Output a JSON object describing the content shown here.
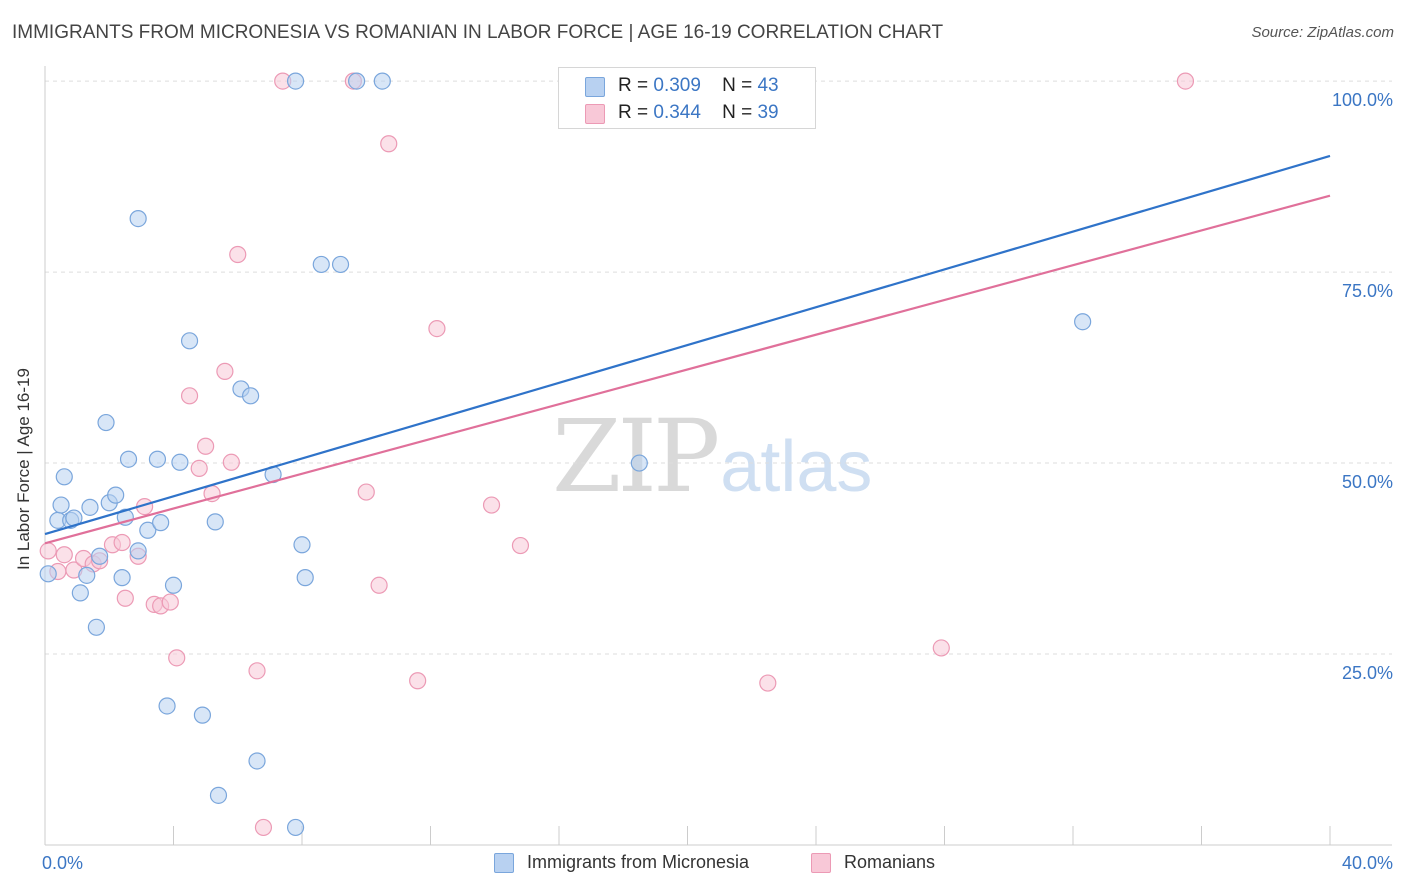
{
  "header": {
    "title": "IMMIGRANTS FROM MICRONESIA VS ROMANIAN IN LABOR FORCE | AGE 16-19 CORRELATION CHART",
    "source": "Source: ZipAtlas.com"
  },
  "watermark": {
    "zip": "ZIP",
    "atlas": "atlas"
  },
  "legend": {
    "blue": {
      "r_label": "R =",
      "r_value": "0.309",
      "n_label": "N =",
      "n_value": "43"
    },
    "pink": {
      "r_label": "R =",
      "r_value": "0.344",
      "n_label": "N =",
      "n_value": "39"
    }
  },
  "bottom_legend": {
    "blue_label": "Immigrants from Micronesia",
    "pink_label": "Romanians"
  },
  "colors": {
    "blue_fill": "#b8d1f1",
    "blue_stroke": "#7aa6dc",
    "blue_line": "#2f73c9",
    "pink_fill": "#f8c8d7",
    "pink_stroke": "#ec9ab5",
    "pink_line": "#e0709a",
    "axis_text": "#3b76c4",
    "grid": "#dddddd"
  },
  "chart_data": {
    "type": "scatter",
    "title": "IMMIGRANTS FROM MICRONESIA VS ROMANIAN IN LABOR FORCE | AGE 16-19 CORRELATION CHART",
    "xlabel": "",
    "ylabel": "In Labor Force | Age 16-19",
    "xlim": [
      0,
      40
    ],
    "ylim": [
      0,
      102.5
    ],
    "x_tick_labels": [
      "0.0%",
      "40.0%"
    ],
    "y_ticks": [
      25,
      50,
      75,
      100
    ],
    "y_tick_labels": [
      "25.0%",
      "50.0%",
      "75.0%",
      "100.0%"
    ],
    "grid": true,
    "legend_position": "top-center",
    "series": [
      {
        "name": "Immigrants from Micronesia",
        "color": "#b8d1f1",
        "points": [
          [
            0.1,
            35.5
          ],
          [
            0.4,
            42.5
          ],
          [
            0.5,
            44.5
          ],
          [
            0.6,
            48.2
          ],
          [
            0.8,
            42.5
          ],
          [
            0.9,
            42.8
          ],
          [
            1.1,
            33.0
          ],
          [
            1.3,
            35.3
          ],
          [
            1.4,
            44.2
          ],
          [
            1.6,
            28.5
          ],
          [
            1.7,
            37.8
          ],
          [
            1.9,
            55.3
          ],
          [
            2.0,
            44.8
          ],
          [
            2.2,
            45.8
          ],
          [
            2.4,
            35.0
          ],
          [
            2.5,
            42.9
          ],
          [
            2.6,
            50.5
          ],
          [
            2.9,
            38.5
          ],
          [
            2.9,
            82.0
          ],
          [
            3.2,
            41.2
          ],
          [
            3.5,
            50.5
          ],
          [
            3.6,
            42.2
          ],
          [
            3.8,
            18.2
          ],
          [
            4.0,
            34.0
          ],
          [
            4.2,
            50.1
          ],
          [
            4.5,
            66.0
          ],
          [
            4.9,
            17.0
          ],
          [
            5.3,
            42.3
          ],
          [
            5.4,
            6.5
          ],
          [
            6.1,
            59.7
          ],
          [
            6.4,
            58.8
          ],
          [
            6.6,
            11.0
          ],
          [
            7.1,
            48.5
          ],
          [
            7.8,
            100.0
          ],
          [
            7.8,
            2.3
          ],
          [
            8.0,
            39.3
          ],
          [
            8.1,
            35.0
          ],
          [
            8.6,
            76.0
          ],
          [
            9.2,
            76.0
          ],
          [
            9.7,
            100.0
          ],
          [
            10.5,
            100.0
          ],
          [
            18.5,
            50.0
          ],
          [
            32.3,
            68.5
          ]
        ]
      },
      {
        "name": "Romanians",
        "color": "#f8c8d7",
        "points": [
          [
            0.1,
            38.5
          ],
          [
            0.4,
            35.8
          ],
          [
            0.6,
            38.0
          ],
          [
            0.9,
            36.0
          ],
          [
            1.2,
            37.5
          ],
          [
            1.5,
            36.8
          ],
          [
            1.7,
            37.2
          ],
          [
            2.1,
            39.3
          ],
          [
            2.4,
            39.6
          ],
          [
            2.5,
            32.3
          ],
          [
            2.9,
            37.8
          ],
          [
            3.1,
            44.3
          ],
          [
            3.4,
            31.5
          ],
          [
            3.6,
            31.3
          ],
          [
            3.9,
            31.8
          ],
          [
            4.1,
            24.5
          ],
          [
            4.5,
            58.8
          ],
          [
            4.8,
            49.3
          ],
          [
            5.0,
            52.2
          ],
          [
            5.2,
            46.0
          ],
          [
            5.6,
            62.0
          ],
          [
            5.8,
            50.1
          ],
          [
            6.0,
            77.3
          ],
          [
            6.6,
            22.8
          ],
          [
            6.8,
            2.3
          ],
          [
            7.4,
            100.0
          ],
          [
            9.6,
            100.0
          ],
          [
            10.0,
            46.2
          ],
          [
            10.4,
            34.0
          ],
          [
            10.7,
            91.8
          ],
          [
            11.6,
            21.5
          ],
          [
            12.2,
            67.6
          ],
          [
            13.9,
            44.5
          ],
          [
            14.8,
            39.2
          ],
          [
            16.5,
            100.0
          ],
          [
            16.6,
            100.0
          ],
          [
            22.5,
            21.2
          ],
          [
            27.9,
            25.8
          ],
          [
            35.5,
            100.0
          ]
        ]
      }
    ],
    "trendlines": [
      {
        "series": "Immigrants from Micronesia",
        "x": [
          0,
          40
        ],
        "y": [
          40.7,
          90.2
        ]
      },
      {
        "series": "Romanians",
        "x": [
          0,
          40
        ],
        "y": [
          39.5,
          85.0
        ]
      }
    ]
  }
}
